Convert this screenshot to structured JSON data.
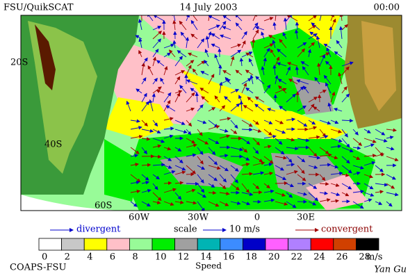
{
  "header": {
    "left": "FSU/QuikSCAT",
    "center": "14 July 2003",
    "right": "00:00"
  },
  "map": {
    "lat_labels": [
      "20S",
      "40S",
      "60S"
    ],
    "lon_labels": [
      "60W",
      "30W",
      "0",
      "30E"
    ]
  },
  "legend": {
    "divergent": "divergent",
    "scale": "scale",
    "scale_value": "10 m/s",
    "convergent": "convergent"
  },
  "colorbar": {
    "colors": [
      "#ffffff",
      "#c8c8c8",
      "#ffff00",
      "#ffc0c8",
      "#98fb98",
      "#00ee00",
      "#a0a0a0",
      "#00b4b4",
      "#3c8cff",
      "#0000c8",
      "#ff60ff",
      "#b080ff",
      "#ff0000",
      "#d04000",
      "#000000"
    ],
    "labels": [
      0,
      2,
      4,
      6,
      8,
      10,
      12,
      14,
      16,
      18,
      20,
      22,
      24,
      26,
      28
    ],
    "unit": "m/s",
    "title": "Speed"
  },
  "footer": {
    "left": "COAPS-FSU",
    "right": "Yan Gu"
  }
}
